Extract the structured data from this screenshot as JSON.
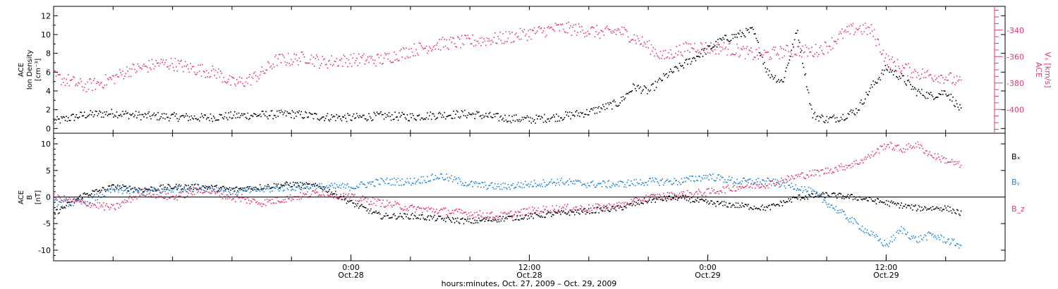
{
  "colors": {
    "black": "#000000",
    "red": "#e8386d",
    "blue": "#1f86d8"
  },
  "chart_data": [
    {
      "type": "scatter",
      "panel": "top",
      "ylabel_lines": [
        "ACE",
        "Ion Density",
        "[cm⁻³]"
      ],
      "y2label_lines": [
        "ACE",
        "Vₓ [km/s]"
      ],
      "ylim": [
        -0.5,
        13
      ],
      "y2lim": [
        -418,
        -322
      ],
      "yticks": [
        0,
        2,
        4,
        6,
        8,
        10,
        12
      ],
      "y2ticks": [
        -400,
        -380,
        -360,
        -340
      ],
      "xlim": [
        -20,
        44
      ],
      "xlabel": "hours:minutes, Oct. 27, 2009 – Oct. 29, 2009",
      "xticks": [
        {
          "t": 0,
          "time": "0:00",
          "date": "Oct.28"
        },
        {
          "t": 12,
          "time": "12:00",
          "date": "Oct.28"
        },
        {
          "t": 24,
          "time": "0:00",
          "date": "Oct.29"
        },
        {
          "t": 36,
          "time": "12:00",
          "date": "Oct.29"
        }
      ],
      "series": [
        {
          "name": "",
          "axis": "left",
          "color": "#000000",
          "knots_t": [
            -20,
            -18,
            -16,
            -14,
            -12,
            -10,
            -8,
            -6,
            -4,
            -2,
            0,
            2,
            4,
            6,
            8,
            10,
            12,
            14,
            16,
            18,
            19,
            20,
            21,
            22,
            23,
            24,
            25,
            26,
            27,
            28,
            29,
            30,
            31,
            32,
            33,
            34,
            35,
            36,
            37,
            38,
            39,
            40,
            41
          ],
          "knots_v": [
            0.8,
            1.5,
            1.7,
            1.4,
            1.3,
            1.2,
            1.4,
            1.5,
            1.6,
            1.3,
            1.2,
            1.4,
            1.3,
            1.5,
            1.6,
            1.2,
            1.0,
            1.3,
            1.8,
            2.8,
            4.5,
            4.0,
            5.5,
            6.5,
            7.5,
            8.5,
            9.5,
            10.0,
            10.5,
            6.0,
            5.0,
            10.5,
            1.5,
            1.0,
            1.3,
            2.0,
            4.5,
            6.5,
            5.5,
            4.0,
            3.5,
            4.0,
            2.0
          ],
          "jitter": 0.45
        },
        {
          "name": "",
          "axis": "right",
          "color": "#e8386d",
          "knots_t": [
            -20,
            -19,
            -18,
            -17,
            -16,
            -15,
            -14,
            -13,
            -12,
            -11,
            -10,
            -9,
            -8,
            -7,
            -6,
            -5,
            -4,
            -3,
            -2,
            0,
            2,
            4,
            6,
            8,
            10,
            12,
            14,
            16,
            17,
            18,
            19,
            20,
            21,
            22,
            23,
            24,
            25,
            26,
            27,
            28,
            29,
            30,
            31,
            32,
            33,
            34,
            35,
            36,
            37,
            38,
            39,
            40,
            41
          ],
          "knots_v": [
            -375,
            -378,
            -382,
            -380,
            -376,
            -370,
            -368,
            -365,
            -365,
            -368,
            -370,
            -372,
            -380,
            -378,
            -372,
            -362,
            -362,
            -360,
            -364,
            -362,
            -362,
            -355,
            -350,
            -348,
            -346,
            -342,
            -338,
            -340,
            -342,
            -340,
            -345,
            -352,
            -360,
            -355,
            -352,
            -353,
            -353,
            -355,
            -358,
            -358,
            -356,
            -355,
            -356,
            -352,
            -343,
            -338,
            -340,
            -362,
            -368,
            -372,
            -374,
            -375,
            -380
          ],
          "jitter": 5
        }
      ]
    },
    {
      "type": "scatter",
      "panel": "bottom",
      "ylabel_lines": [
        "ACE",
        "B",
        "[nT]"
      ],
      "ylim": [
        -12,
        12
      ],
      "yticks": [
        -10,
        -5,
        0,
        5,
        10
      ],
      "zero_line": true,
      "xlim": [
        -20,
        44
      ],
      "series": [
        {
          "name": "Bₓ",
          "color": "#000000",
          "knots_t": [
            -20,
            -18,
            -16,
            -14,
            -12,
            -10,
            -8,
            -6,
            -4,
            -2,
            0,
            2,
            4,
            6,
            8,
            10,
            12,
            14,
            16,
            18,
            20,
            22,
            24,
            26,
            28,
            30,
            32,
            34,
            36,
            38,
            40,
            41
          ],
          "knots_v": [
            -3,
            0.5,
            2.0,
            1.5,
            2.0,
            2.0,
            1.5,
            2.0,
            2.5,
            2.0,
            -1.0,
            -3.5,
            -3.5,
            -4.0,
            -4.5,
            -4.0,
            -3.5,
            -3.0,
            -2.5,
            -2.0,
            -0.5,
            0,
            -1.0,
            -1.5,
            -2.0,
            0,
            0.5,
            0,
            -1.0,
            -2.0,
            -2.0,
            -3.0
          ],
          "jitter": 0.55
        },
        {
          "name": "Bᵧ",
          "color": "#1f86d8",
          "knots_t": [
            -20,
            -18,
            -16,
            -14,
            -12,
            -10,
            -8,
            -6,
            -4,
            -2,
            0,
            2,
            4,
            6,
            8,
            10,
            12,
            14,
            16,
            18,
            20,
            22,
            24,
            26,
            28,
            30,
            31,
            32,
            33,
            34,
            35,
            36,
            37,
            38,
            39,
            40,
            41
          ],
          "knots_v": [
            -1,
            -1,
            1.5,
            1.0,
            1.5,
            2.0,
            1.0,
            1.5,
            2.0,
            2.0,
            2.0,
            3.0,
            3.0,
            4.0,
            2.5,
            2.0,
            2.5,
            3.0,
            2.5,
            2.5,
            3.0,
            3.0,
            4.0,
            3.0,
            3.0,
            2.0,
            1.0,
            -1.0,
            -3.0,
            -5.0,
            -7.0,
            -9.0,
            -6.0,
            -8.0,
            -7.0,
            -8.0,
            -9.0
          ],
          "jitter": 0.7
        },
        {
          "name": "B_z",
          "color": "#e8386d",
          "knots_t": [
            -20,
            -18,
            -16,
            -14,
            -12,
            -10,
            -8,
            -6,
            -4,
            -2,
            0,
            2,
            4,
            6,
            8,
            10,
            12,
            14,
            16,
            18,
            20,
            22,
            24,
            26,
            28,
            30,
            32,
            34,
            35,
            36,
            37,
            38,
            39,
            40,
            41
          ],
          "knots_v": [
            0,
            -1,
            -2.0,
            1.0,
            0,
            1.5,
            0,
            -1.0,
            0,
            1.0,
            0,
            -1.0,
            -2.0,
            -2.5,
            -3.0,
            -3.5,
            -2.5,
            -2.0,
            -2.0,
            -1.5,
            0,
            0.5,
            1.0,
            2.0,
            2.5,
            4.0,
            5.0,
            6.5,
            8.0,
            10.0,
            9.0,
            10.0,
            8.0,
            7.0,
            6.0
          ],
          "jitter": 0.7
        }
      ]
    }
  ]
}
